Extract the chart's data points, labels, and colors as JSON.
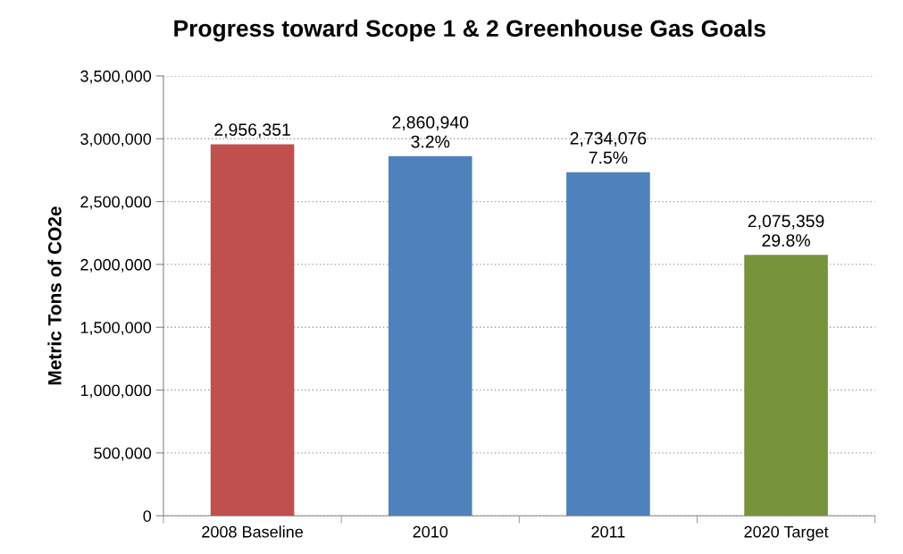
{
  "chart_data": {
    "type": "bar",
    "title": "Progress toward Scope 1 & 2 Greenhouse Gas Goals",
    "ylabel": "Metric Tons of CO2e",
    "categories": [
      "2008 Baseline",
      "2010",
      "2011",
      "2020 Target"
    ],
    "values": [
      2956351,
      2860940,
      2734076,
      2075359
    ],
    "colors": [
      "#c0504d",
      "#4f81bd",
      "#4f81bd",
      "#77933c"
    ],
    "value_labels": [
      "2,956,351",
      "2,860,940\n3.2%",
      "2,734,076\n7.5%",
      "2,075,359\n29.8%"
    ],
    "ylim": [
      0,
      3500000
    ],
    "yticks": [
      {
        "value": 0,
        "label": "0"
      },
      {
        "value": 500000,
        "label": "500,000"
      },
      {
        "value": 1000000,
        "label": "1,000,000"
      },
      {
        "value": 1500000,
        "label": "1,500,000"
      },
      {
        "value": 2000000,
        "label": "2,000,000"
      },
      {
        "value": 2500000,
        "label": "2,500,000"
      },
      {
        "value": 3000000,
        "label": "3,000,000"
      },
      {
        "value": 3500000,
        "label": "3,500,000"
      }
    ],
    "grid": "y",
    "legend": false
  }
}
